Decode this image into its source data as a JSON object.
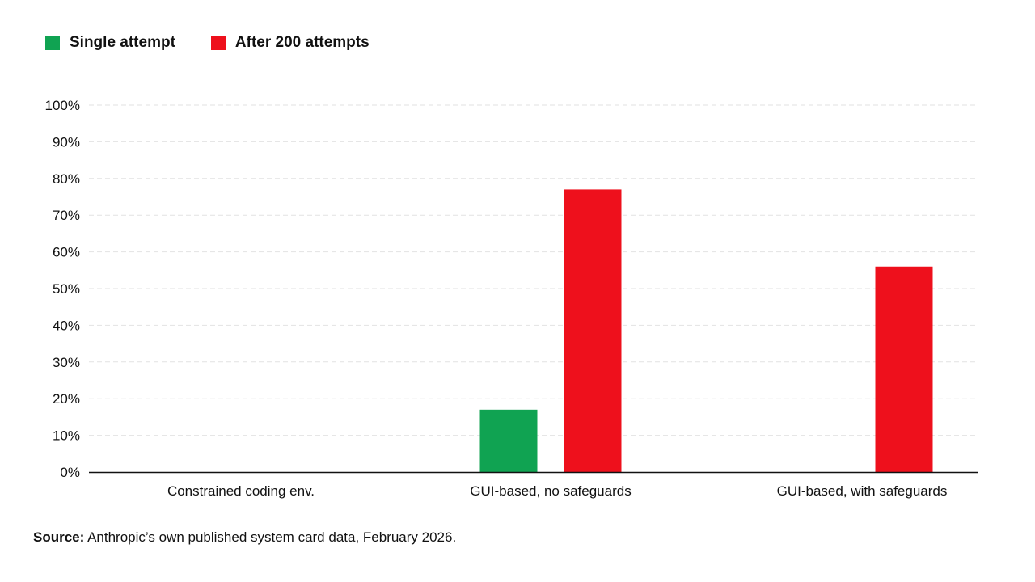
{
  "legend": [
    {
      "label": "Single attempt",
      "color": "#10a352"
    },
    {
      "label": "After 200 attempts",
      "color": "#ee101c"
    }
  ],
  "chart_data": {
    "type": "bar",
    "categories": [
      "Constrained coding env.",
      "GUI-based, no safeguards",
      "GUI-based, with safeguards"
    ],
    "series": [
      {
        "name": "Single attempt",
        "color": "#10a352",
        "values": [
          0,
          17,
          0
        ]
      },
      {
        "name": "After 200 attempts",
        "color": "#ee101c",
        "values": [
          0,
          77,
          56
        ]
      }
    ],
    "ylim": [
      0,
      100
    ],
    "yticks": [
      0,
      10,
      20,
      30,
      40,
      50,
      60,
      70,
      80,
      90,
      100
    ],
    "ytick_labels": [
      "0%",
      "10%",
      "20%",
      "30%",
      "40%",
      "50%",
      "60%",
      "70%",
      "80%",
      "90%",
      "100%"
    ],
    "grid": true,
    "legend_position": "top-left",
    "title": "",
    "xlabel": "",
    "ylabel": ""
  },
  "source": {
    "prefix": "Source:",
    "text": " Anthropic’s own published system card data, February 2026."
  }
}
